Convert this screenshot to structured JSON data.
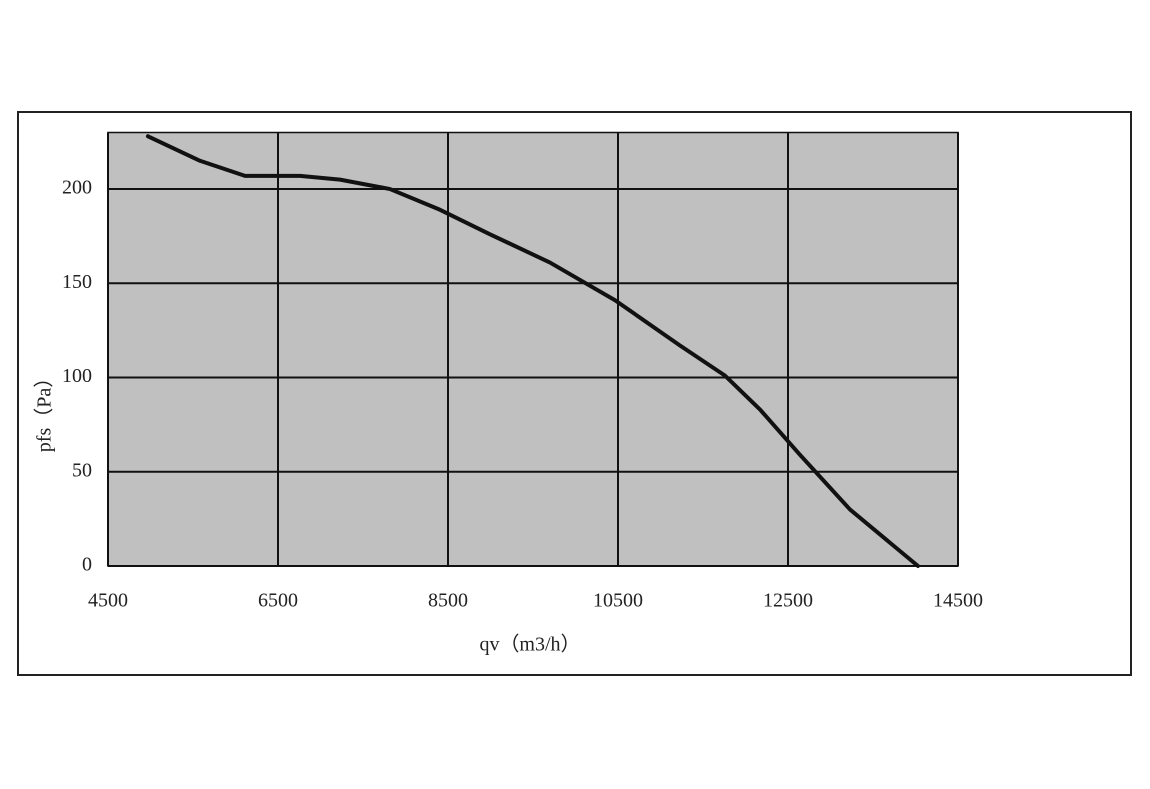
{
  "chart_data": {
    "type": "line",
    "x_label": "qv（m3/h）",
    "y_label": "pfs（Pa）",
    "xlim": [
      4500,
      14500
    ],
    "xticks": [
      4500,
      6500,
      8500,
      10500,
      12500,
      14500
    ],
    "ylim": [
      0,
      230
    ],
    "yticks": [
      0,
      50,
      100,
      150,
      200
    ],
    "grid": true,
    "background": "#c0c0c0",
    "series": [
      {
        "color": "#111111",
        "x": [
          4970,
          5582,
          6112,
          6759,
          7229,
          7818,
          8406,
          8994,
          9700,
          10465,
          11229,
          11759,
          12171,
          12641,
          13229,
          14029
        ],
        "values": [
          228,
          215,
          207,
          207,
          205,
          200,
          189,
          176,
          161,
          141,
          117,
          101,
          83,
          59,
          30,
          0
        ]
      }
    ]
  }
}
